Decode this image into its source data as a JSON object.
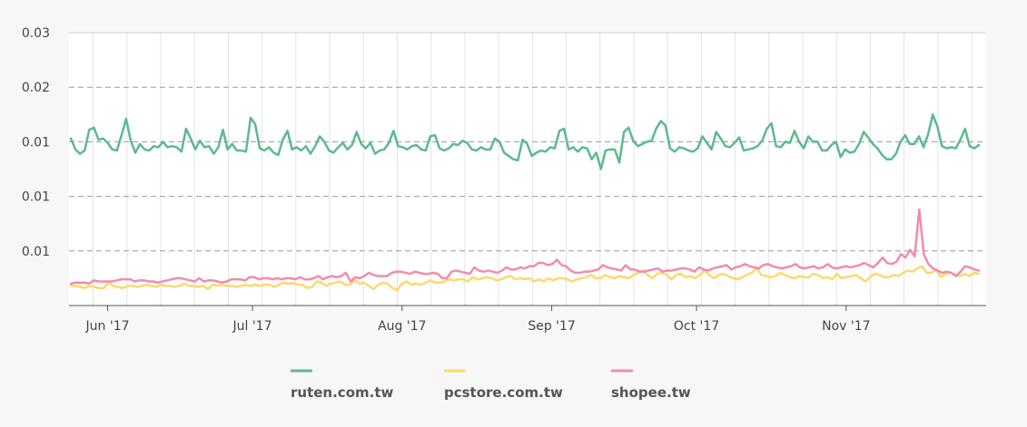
{
  "chart_data": {
    "type": "line",
    "title": "",
    "xlabel": "",
    "ylabel": "",
    "x_start": "2017-05-24",
    "x_end": "2017-11-30",
    "x_tick_labels": [
      "Jun '17",
      "Jul '17",
      "Aug '17",
      "Sep '17",
      "Oct '17",
      "Nov '17"
    ],
    "x_tick_dates": [
      "2017-06-01",
      "2017-07-01",
      "2017-08-01",
      "2017-09-01",
      "2017-10-01",
      "2017-11-01"
    ],
    "ylim": [
      0,
      0.025
    ],
    "y_tick_values": [
      0.005,
      0.01,
      0.015,
      0.02,
      0.025
    ],
    "y_tick_labels": [
      "0.01",
      "0.01",
      "0.01",
      "0.02",
      "0.03"
    ],
    "grid": "horizontal dashed, vertical solid",
    "legend_position": "bottom",
    "series": [
      {
        "name": "ruten.com.tw",
        "color": "#5dba8d",
        "values": [
          0.0153,
          0.0143,
          0.0139,
          0.0142,
          0.0161,
          0.0163,
          0.0152,
          0.0153,
          0.0149,
          0.0143,
          0.0142,
          0.0156,
          0.0171,
          0.0151,
          0.014,
          0.0148,
          0.0143,
          0.0142,
          0.0146,
          0.0145,
          0.015,
          0.0145,
          0.0146,
          0.0145,
          0.0141,
          0.0162,
          0.0153,
          0.0143,
          0.0151,
          0.0145,
          0.0146,
          0.0139,
          0.0145,
          0.0161,
          0.0143,
          0.0148,
          0.0142,
          0.0142,
          0.0141,
          0.0172,
          0.0166,
          0.0144,
          0.0142,
          0.0145,
          0.014,
          0.0138,
          0.0152,
          0.016,
          0.0143,
          0.0145,
          0.0142,
          0.0146,
          0.0139,
          0.0146,
          0.0155,
          0.015,
          0.0142,
          0.014,
          0.0145,
          0.0149,
          0.0143,
          0.0147,
          0.0159,
          0.0148,
          0.0144,
          0.0149,
          0.0139,
          0.0142,
          0.0143,
          0.0149,
          0.016,
          0.0146,
          0.0145,
          0.0143,
          0.0146,
          0.0147,
          0.0143,
          0.0142,
          0.0155,
          0.0156,
          0.0144,
          0.0142,
          0.0144,
          0.0148,
          0.0147,
          0.0151,
          0.0149,
          0.0143,
          0.0142,
          0.0145,
          0.0143,
          0.0143,
          0.0153,
          0.015,
          0.014,
          0.0137,
          0.0134,
          0.0133,
          0.0152,
          0.0148,
          0.0137,
          0.014,
          0.0142,
          0.0141,
          0.0145,
          0.0144,
          0.016,
          0.0162,
          0.0143,
          0.0145,
          0.0141,
          0.0145,
          0.0144,
          0.0134,
          0.014,
          0.0125,
          0.0142,
          0.0143,
          0.0143,
          0.0131,
          0.0159,
          0.0163,
          0.0151,
          0.0146,
          0.0148,
          0.015,
          0.0151,
          0.0162,
          0.0169,
          0.0165,
          0.0144,
          0.0141,
          0.0145,
          0.0144,
          0.0142,
          0.0141,
          0.0144,
          0.0155,
          0.0149,
          0.0143,
          0.0159,
          0.0153,
          0.0146,
          0.0145,
          0.0149,
          0.0154,
          0.0142,
          0.0143,
          0.0144,
          0.0146,
          0.0151,
          0.0162,
          0.0167,
          0.0146,
          0.0145,
          0.015,
          0.0149,
          0.016,
          0.015,
          0.0144,
          0.0155,
          0.015,
          0.015,
          0.0142,
          0.0142,
          0.0147,
          0.015,
          0.0136,
          0.0143,
          0.014,
          0.0141,
          0.0148,
          0.0159,
          0.0154,
          0.0148,
          0.0144,
          0.0138,
          0.0134,
          0.0134,
          0.0139,
          0.015,
          0.0156,
          0.0148,
          0.0148,
          0.0155,
          0.0145,
          0.0157,
          0.0175,
          0.0164,
          0.0146,
          0.0144,
          0.0145,
          0.0144,
          0.0152,
          0.0162,
          0.0146,
          0.0144,
          0.0147
        ]
      },
      {
        "name": "pcstore.com.tw",
        "color": "#fcd96d",
        "values": [
          0.0018,
          0.0018,
          0.0017,
          0.0016,
          0.0018,
          0.0017,
          0.0016,
          0.0016,
          0.0021,
          0.0018,
          0.0017,
          0.0016,
          0.0018,
          0.0018,
          0.0017,
          0.0018,
          0.0019,
          0.0018,
          0.0017,
          0.0019,
          0.0018,
          0.0018,
          0.0017,
          0.0018,
          0.002,
          0.0018,
          0.0018,
          0.0017,
          0.0018,
          0.0015,
          0.0019,
          0.0018,
          0.0019,
          0.0018,
          0.0018,
          0.0017,
          0.0018,
          0.0019,
          0.0018,
          0.0019,
          0.0018,
          0.0019,
          0.0019,
          0.0017,
          0.0019,
          0.0021,
          0.002,
          0.0021,
          0.0019,
          0.0019,
          0.0016,
          0.0017,
          0.0022,
          0.0021,
          0.0018,
          0.002,
          0.0021,
          0.0022,
          0.0019,
          0.0019,
          0.0023,
          0.002,
          0.0021,
          0.0018,
          0.0015,
          0.0019,
          0.0021,
          0.002,
          0.0016,
          0.0014,
          0.002,
          0.0022,
          0.0019,
          0.002,
          0.0019,
          0.0021,
          0.0023,
          0.0021,
          0.0021,
          0.0022,
          0.0024,
          0.0023,
          0.0024,
          0.0024,
          0.0022,
          0.0026,
          0.0024,
          0.0025,
          0.0026,
          0.0025,
          0.0023,
          0.0024,
          0.0026,
          0.0027,
          0.0024,
          0.0025,
          0.0024,
          0.0025,
          0.0022,
          0.0024,
          0.0022,
          0.0025,
          0.0023,
          0.0025,
          0.0025,
          0.0024,
          0.0022,
          0.0024,
          0.0025,
          0.0026,
          0.0028,
          0.0025,
          0.0025,
          0.0028,
          0.0026,
          0.0025,
          0.0027,
          0.0026,
          0.0025,
          0.0028,
          0.003,
          0.0032,
          0.0028,
          0.0025,
          0.0029,
          0.003,
          0.0028,
          0.0024,
          0.0028,
          0.0029,
          0.0026,
          0.0027,
          0.0025,
          0.0028,
          0.0032,
          0.0028,
          0.0025,
          0.0028,
          0.0029,
          0.0027,
          0.0025,
          0.0024,
          0.0026,
          0.0028,
          0.003,
          0.0034,
          0.0028,
          0.0027,
          0.0026,
          0.0027,
          0.003,
          0.0028,
          0.0026,
          0.0025,
          0.0027,
          0.0026,
          0.0026,
          0.0029,
          0.0028,
          0.0025,
          0.0026,
          0.0024,
          0.0029,
          0.0025,
          0.0026,
          0.0027,
          0.0028,
          0.0025,
          0.0022,
          0.0026,
          0.0029,
          0.0028,
          0.0026,
          0.0026,
          0.0028,
          0.0027,
          0.003,
          0.0032,
          0.0031,
          0.0034,
          0.0036,
          0.003,
          0.003,
          0.0033,
          0.0026,
          0.0029,
          0.003,
          0.0028,
          0.0027,
          0.0029,
          0.0027,
          0.003,
          0.0029
        ]
      },
      {
        "name": "shopee.tw",
        "color": "#f28cab",
        "values": [
          0.002,
          0.0021,
          0.0021,
          0.0021,
          0.002,
          0.0023,
          0.0022,
          0.0022,
          0.0022,
          0.0022,
          0.0023,
          0.0024,
          0.0024,
          0.0024,
          0.0022,
          0.0023,
          0.0023,
          0.0022,
          0.0022,
          0.0021,
          0.0022,
          0.0023,
          0.0024,
          0.0025,
          0.0025,
          0.0024,
          0.0023,
          0.0022,
          0.0025,
          0.0022,
          0.0023,
          0.0023,
          0.0022,
          0.0021,
          0.0022,
          0.0024,
          0.0024,
          0.0024,
          0.0023,
          0.0026,
          0.0026,
          0.0024,
          0.0025,
          0.0025,
          0.0024,
          0.0025,
          0.0024,
          0.0025,
          0.0025,
          0.0024,
          0.0026,
          0.0024,
          0.0024,
          0.0025,
          0.0027,
          0.0024,
          0.0026,
          0.0027,
          0.0026,
          0.0027,
          0.003,
          0.0022,
          0.0026,
          0.0025,
          0.0027,
          0.003,
          0.0028,
          0.0027,
          0.0027,
          0.0027,
          0.003,
          0.0031,
          0.0031,
          0.003,
          0.0029,
          0.0031,
          0.003,
          0.0029,
          0.0029,
          0.003,
          0.0029,
          0.0025,
          0.0025,
          0.0031,
          0.0032,
          0.0031,
          0.003,
          0.0029,
          0.0035,
          0.0032,
          0.0031,
          0.0032,
          0.0031,
          0.003,
          0.0032,
          0.0035,
          0.0033,
          0.0033,
          0.0035,
          0.0034,
          0.0036,
          0.0036,
          0.0039,
          0.0039,
          0.0037,
          0.0038,
          0.0042,
          0.0037,
          0.0036,
          0.0032,
          0.003,
          0.003,
          0.0031,
          0.0031,
          0.0032,
          0.0033,
          0.0037,
          0.0035,
          0.0034,
          0.0033,
          0.0032,
          0.0037,
          0.0033,
          0.0033,
          0.0031,
          0.0031,
          0.0032,
          0.0033,
          0.0034,
          0.0031,
          0.0032,
          0.0032,
          0.0033,
          0.0034,
          0.0034,
          0.0033,
          0.0031,
          0.0035,
          0.0033,
          0.0032,
          0.0034,
          0.0035,
          0.0036,
          0.0037,
          0.0033,
          0.0035,
          0.0036,
          0.0038,
          0.0036,
          0.0035,
          0.0034,
          0.0037,
          0.0038,
          0.0036,
          0.0035,
          0.0034,
          0.0035,
          0.0036,
          0.0038,
          0.0035,
          0.0034,
          0.0035,
          0.0036,
          0.0034,
          0.0035,
          0.0038,
          0.0035,
          0.0034,
          0.0035,
          0.0036,
          0.0035,
          0.0036,
          0.0037,
          0.0039,
          0.0037,
          0.0035,
          0.0039,
          0.0044,
          0.0039,
          0.0038,
          0.004,
          0.0047,
          0.0044,
          0.0051,
          0.0045,
          0.0088,
          0.0047,
          0.0038,
          0.0034,
          0.0032,
          0.003,
          0.0031,
          0.003,
          0.0027,
          0.0031,
          0.0036,
          0.0035,
          0.0033,
          0.0032
        ]
      }
    ]
  }
}
